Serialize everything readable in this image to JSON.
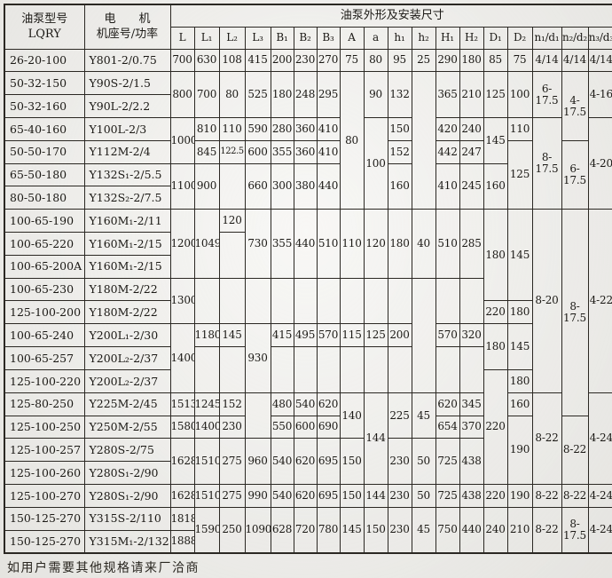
{
  "colors": {
    "paper": "#f1f0ec",
    "line": "#2b2823",
    "ink": "#1b1915"
  },
  "header": {
    "model_line1": "油泵型号",
    "model_line2": "LQRY",
    "motor_line1": "电　　机",
    "motor_line2": "机座号/功率",
    "dims_title": "油泵外形及安装尺寸"
  },
  "dim_columns": [
    "L",
    "L₁",
    "L₂",
    "L₃",
    "B₁",
    "B₂",
    "B₃",
    "A",
    "a",
    "h₁",
    "h₂",
    "H₁",
    "H₂",
    "D₁",
    "D₂",
    "n₁/d₁",
    "n₂/d₂",
    "n₃/d₃"
  ],
  "footer_note": "如用户需要其他规格请来厂洽商",
  "table_body": [
    [
      {
        "t": "26-20-100",
        "c": "mdl"
      },
      {
        "t": "Y801-2/0.75",
        "c": "mtr"
      },
      {
        "t": "700"
      },
      {
        "t": "630"
      },
      {
        "t": "108"
      },
      {
        "t": "415"
      },
      {
        "t": "200"
      },
      {
        "t": "230"
      },
      {
        "t": "270"
      },
      {
        "t": "75"
      },
      {
        "t": "80"
      },
      {
        "t": "95"
      },
      {
        "t": "25"
      },
      {
        "t": "290"
      },
      {
        "t": "180"
      },
      {
        "t": "85"
      },
      {
        "t": "75"
      },
      {
        "t": "4/14"
      },
      {
        "t": "4/14"
      },
      {
        "t": "4/14"
      }
    ],
    [
      {
        "t": "50-32-150",
        "c": "mdl"
      },
      {
        "t": "Y90S-2/1.5",
        "c": "mtr"
      },
      {
        "t": "800",
        "rs": 2
      },
      {
        "t": "700",
        "rs": 2
      },
      {
        "t": "80",
        "rs": 2
      },
      {
        "t": "525",
        "rs": 2
      },
      {
        "t": "180",
        "rs": 2
      },
      {
        "t": "248",
        "rs": 2
      },
      {
        "t": "295",
        "rs": 2
      },
      {
        "t": "80",
        "rs": 6
      },
      {
        "t": "90",
        "rs": 2
      },
      {
        "t": "132",
        "rs": 2
      },
      {
        "t": "",
        "rs": 6
      },
      {
        "t": "365",
        "rs": 2
      },
      {
        "t": "210",
        "rs": 2
      },
      {
        "t": "125",
        "rs": 2
      },
      {
        "t": "100",
        "rs": 2
      },
      {
        "t": "6-17.5",
        "rs": 2
      },
      {
        "t": "4-17.5",
        "rs": 3
      },
      {
        "t": "4-16",
        "rs": 2
      }
    ],
    [
      {
        "t": "50-32-160",
        "c": "mdl"
      },
      {
        "t": "Y90L-2/2.2",
        "c": "mtr"
      }
    ],
    [
      {
        "t": "65-40-160",
        "c": "mdl"
      },
      {
        "t": "Y100L-2/3",
        "c": "mtr"
      },
      {
        "t": "1000",
        "rs": 2
      },
      {
        "t": "810"
      },
      {
        "t": "110"
      },
      {
        "t": "590"
      },
      {
        "t": "280"
      },
      {
        "t": "360"
      },
      {
        "t": "410"
      },
      {
        "t": "100",
        "rs": 4
      },
      {
        "t": "150"
      },
      {
        "t": "420"
      },
      {
        "t": "240"
      },
      {
        "t": "145",
        "rs": 2
      },
      {
        "t": "110"
      },
      {
        "t": "8-17.5",
        "rs": 4
      },
      {
        "t": "4-20",
        "rs": 4
      }
    ],
    [
      {
        "t": "50-50-170",
        "c": "mdl"
      },
      {
        "t": "Y112M-2/4",
        "c": "mtr"
      },
      {
        "t": "845"
      },
      {
        "t": "122.5",
        "c": "sm"
      },
      {
        "t": "600"
      },
      {
        "t": "355"
      },
      {
        "t": "360"
      },
      {
        "t": "410"
      },
      {
        "t": "152"
      },
      {
        "t": "442"
      },
      {
        "t": "247"
      },
      {
        "t": "125",
        "rs": 3
      },
      {
        "t": "6-17.5",
        "rs": 3
      }
    ],
    [
      {
        "t": "65-50-180",
        "c": "mdl"
      },
      {
        "t": "Y132S₁-2/5.5",
        "c": "mtr"
      },
      {
        "t": "1100",
        "rs": 2
      },
      {
        "t": "900",
        "rs": 2
      },
      {
        "t": "",
        "rs": 2
      },
      {
        "t": "660",
        "rs": 2
      },
      {
        "t": "300",
        "rs": 2
      },
      {
        "t": "380",
        "rs": 2
      },
      {
        "t": "440",
        "rs": 2
      },
      {
        "t": "160",
        "rs": 2
      },
      {
        "t": "410",
        "rs": 2
      },
      {
        "t": "245",
        "rs": 2
      },
      {
        "t": "160",
        "rs": 2
      }
    ],
    [
      {
        "t": "80-50-180",
        "c": "mdl"
      },
      {
        "t": "Y132S₂-2/7.5",
        "c": "mtr"
      }
    ],
    [
      {
        "t": "100-65-190",
        "c": "mdl"
      },
      {
        "t": "Y160M₁-2/11",
        "c": "mtr"
      },
      {
        "t": "1200",
        "rs": 3
      },
      {
        "t": "1049",
        "rs": 3
      },
      {
        "t": "120"
      },
      {
        "t": "730",
        "rs": 3
      },
      {
        "t": "355",
        "rs": 3
      },
      {
        "t": "440",
        "rs": 3
      },
      {
        "t": "510",
        "rs": 3
      },
      {
        "t": "110",
        "rs": 3
      },
      {
        "t": "120",
        "rs": 3
      },
      {
        "t": "180",
        "rs": 3
      },
      {
        "t": "40",
        "rs": 3
      },
      {
        "t": "510",
        "rs": 3
      },
      {
        "t": "285",
        "rs": 3
      },
      {
        "t": "180",
        "rs": 4
      },
      {
        "t": "145",
        "rs": 4
      },
      {
        "t": "8-20",
        "rs": 8
      },
      {
        "t": "8-17.5",
        "rs": 9
      },
      {
        "t": "4-22",
        "rs": 8
      }
    ],
    [
      {
        "t": "100-65-220",
        "c": "mdl"
      },
      {
        "t": "Y160M₁-2/15",
        "c": "mtr"
      },
      {
        "t": "",
        "rs": 2
      }
    ],
    [
      {
        "t": "100-65-200A",
        "c": "mdl"
      },
      {
        "t": "Y160M₁-2/15",
        "c": "mtr"
      }
    ],
    [
      {
        "t": "100-65-230",
        "c": "mdl"
      },
      {
        "t": "Y180M-2/22",
        "c": "mtr"
      },
      {
        "t": "1300",
        "rs": 2
      },
      {
        "t": "",
        "rs": 2
      },
      {
        "t": "",
        "rs": 2
      },
      {
        "t": "",
        "rs": 2
      },
      {
        "t": "",
        "rs": 2
      },
      {
        "t": "",
        "rs": 2
      },
      {
        "t": "",
        "rs": 2
      },
      {
        "t": "",
        "rs": 2
      },
      {
        "t": "",
        "rs": 2
      },
      {
        "t": "",
        "rs": 2
      },
      {
        "t": "",
        "rs": 5
      },
      {
        "t": "",
        "rs": 2
      },
      {
        "t": "",
        "rs": 2
      }
    ],
    [
      {
        "t": "125-100-200",
        "c": "mdl"
      },
      {
        "t": "Y180M-2/22",
        "c": "mtr"
      },
      {
        "t": "220"
      },
      {
        "t": "180"
      }
    ],
    [
      {
        "t": "100-65-240",
        "c": "mdl"
      },
      {
        "t": "Y200L₁-2/30",
        "c": "mtr"
      },
      {
        "t": "1400",
        "rs": 3
      },
      {
        "t": "1180"
      },
      {
        "t": "145"
      },
      {
        "t": "930",
        "rs": 3
      },
      {
        "t": "415"
      },
      {
        "t": "495"
      },
      {
        "t": "570"
      },
      {
        "t": "115"
      },
      {
        "t": "125"
      },
      {
        "t": "200"
      },
      {
        "t": "570"
      },
      {
        "t": "320"
      },
      {
        "t": "180",
        "rs": 2
      },
      {
        "t": "145",
        "rs": 2
      }
    ],
    [
      {
        "t": "100-65-257",
        "c": "mdl"
      },
      {
        "t": "Y200L₂-2/37",
        "c": "mtr"
      },
      {
        "t": "",
        "rs": 2
      },
      {
        "t": "",
        "rs": 2
      },
      {
        "t": "",
        "rs": 2
      },
      {
        "t": "",
        "rs": 2
      },
      {
        "t": "",
        "rs": 2
      },
      {
        "t": "",
        "rs": 2
      },
      {
        "t": "",
        "rs": 2
      },
      {
        "t": "",
        "rs": 2
      },
      {
        "t": "",
        "rs": 2
      },
      {
        "t": "",
        "rs": 2
      }
    ],
    [
      {
        "t": "125-100-220",
        "c": "mdl"
      },
      {
        "t": "Y200L₂-2/37",
        "c": "mtr"
      },
      {
        "t": "220",
        "rs": 5
      },
      {
        "t": "180"
      }
    ],
    [
      {
        "t": "125-80-250",
        "c": "mdl"
      },
      {
        "t": "Y225M-2/45",
        "c": "mtr"
      },
      {
        "t": "1513"
      },
      {
        "t": "1245"
      },
      {
        "t": "152"
      },
      {
        "t": "",
        "rs": 2
      },
      {
        "t": "480"
      },
      {
        "t": "540"
      },
      {
        "t": "620"
      },
      {
        "t": "140",
        "rs": 2
      },
      {
        "t": "144",
        "rs": 4
      },
      {
        "t": "225",
        "rs": 2
      },
      {
        "t": "45",
        "rs": 2
      },
      {
        "t": "620"
      },
      {
        "t": "345"
      },
      {
        "t": "160"
      },
      {
        "t": "8-22",
        "rs": 4
      },
      {
        "t": "4-24",
        "rs": 4
      }
    ],
    [
      {
        "t": "125-100-250",
        "c": "mdl"
      },
      {
        "t": "Y250M-2/55",
        "c": "mtr"
      },
      {
        "t": "1580"
      },
      {
        "t": "1400"
      },
      {
        "t": "230"
      },
      {
        "t": "550"
      },
      {
        "t": "600"
      },
      {
        "t": "690"
      },
      {
        "t": "654"
      },
      {
        "t": "370"
      },
      {
        "t": "190",
        "rs": 3
      },
      {
        "t": "8-22",
        "rs": 3
      }
    ],
    [
      {
        "t": "125-100-257",
        "c": "mdl"
      },
      {
        "t": "Y280S-2/75",
        "c": "mtr"
      },
      {
        "t": "1628",
        "rs": 2
      },
      {
        "t": "1510",
        "rs": 2
      },
      {
        "t": "275",
        "rs": 2
      },
      {
        "t": "960",
        "rs": 2
      },
      {
        "t": "540",
        "rs": 2
      },
      {
        "t": "620",
        "rs": 2
      },
      {
        "t": "695",
        "rs": 2
      },
      {
        "t": "150",
        "rs": 2
      },
      {
        "t": "230",
        "rs": 2
      },
      {
        "t": "50",
        "rs": 2
      },
      {
        "t": "725",
        "rs": 2
      },
      {
        "t": "438",
        "rs": 2
      }
    ],
    [
      {
        "t": "125-100-260",
        "c": "mdl"
      },
      {
        "t": "Y280S₁-2/90",
        "c": "mtr"
      }
    ],
    [
      {
        "t": "125-100-270",
        "c": "mdl"
      },
      {
        "t": "Y280S₁-2/90",
        "c": "mtr"
      },
      {
        "t": "1628"
      },
      {
        "t": "1510"
      },
      {
        "t": "275"
      },
      {
        "t": "990"
      },
      {
        "t": "540"
      },
      {
        "t": "620"
      },
      {
        "t": "695"
      },
      {
        "t": "150"
      },
      {
        "t": "144"
      },
      {
        "t": "230"
      },
      {
        "t": "50"
      },
      {
        "t": "725"
      },
      {
        "t": "438"
      },
      {
        "t": "220"
      },
      {
        "t": "190"
      },
      {
        "t": "8-22"
      },
      {
        "t": "8-22"
      },
      {
        "t": "4-24"
      }
    ],
    [
      {
        "t": "150-125-270",
        "c": "mdl"
      },
      {
        "t": "Y315S-2/110",
        "c": "mtr"
      },
      {
        "t": "1818"
      },
      {
        "t": "1590",
        "rs": 2
      },
      {
        "t": "250",
        "rs": 2
      },
      {
        "t": "1090",
        "rs": 2
      },
      {
        "t": "628",
        "rs": 2
      },
      {
        "t": "720",
        "rs": 2
      },
      {
        "t": "780",
        "rs": 2
      },
      {
        "t": "145",
        "rs": 2
      },
      {
        "t": "150",
        "rs": 2
      },
      {
        "t": "230",
        "rs": 2
      },
      {
        "t": "45",
        "rs": 2
      },
      {
        "t": "750",
        "rs": 2
      },
      {
        "t": "440",
        "rs": 2
      },
      {
        "t": "240",
        "rs": 2
      },
      {
        "t": "210",
        "rs": 2
      },
      {
        "t": "8-22",
        "rs": 2
      },
      {
        "t": "8-17.5",
        "rs": 2
      },
      {
        "t": "4-24",
        "rs": 2
      }
    ],
    [
      {
        "t": "150-125-270",
        "c": "mdl"
      },
      {
        "t": "Y315M₁-2/132",
        "c": "mtr"
      },
      {
        "t": "1888"
      }
    ]
  ]
}
